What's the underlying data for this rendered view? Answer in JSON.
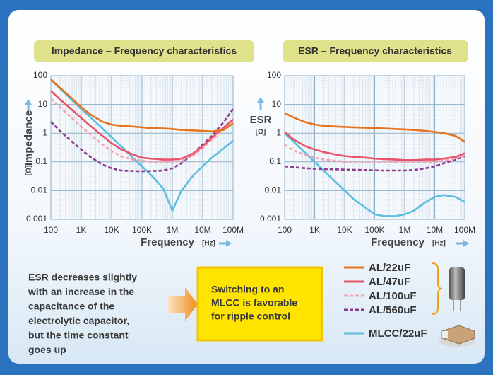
{
  "chart_data": [
    {
      "type": "line",
      "title": "Impedance – Frequency characteristics",
      "xlabel": "Frequency",
      "xunit": "[Hz]",
      "ylabel": "Impedance",
      "yunit": "[Ω]",
      "xlog": true,
      "ylog": true,
      "grid": true,
      "xlim": [
        100,
        100000000
      ],
      "ylim": [
        0.001,
        100
      ],
      "xticks": [
        100,
        {
          "value": 1000,
          "label": "1K"
        },
        {
          "value": 10000,
          "label": "10K"
        },
        {
          "value": 100000,
          "label": "100K"
        },
        {
          "value": 1000000,
          "label": "1M"
        },
        {
          "value": 10000000,
          "label": "10M"
        },
        {
          "value": 100000000,
          "label": "100M"
        }
      ],
      "yticks": [
        100,
        10,
        1,
        0.1,
        0.01,
        0.001
      ],
      "x": [
        100,
        200,
        500,
        1000,
        2000,
        5000,
        10000,
        20000,
        50000,
        100000,
        200000,
        500000,
        1000000,
        2000000,
        5000000,
        10000000,
        20000000,
        50000000,
        100000000
      ],
      "series": [
        {
          "name": "AL/22uF",
          "color": "#e8731e",
          "dash": false,
          "values": [
            75,
            38,
            16,
            8,
            4.5,
            2.5,
            2,
            1.8,
            1.7,
            1.6,
            1.5,
            1.45,
            1.4,
            1.3,
            1.25,
            1.2,
            1.15,
            1.3,
            2.2
          ]
        },
        {
          "name": "AL/47uF",
          "color": "#e8546a",
          "dash": false,
          "values": [
            30,
            15,
            6.5,
            3.4,
            1.8,
            0.8,
            0.45,
            0.28,
            0.18,
            0.14,
            0.13,
            0.12,
            0.12,
            0.13,
            0.2,
            0.35,
            0.7,
            1.6,
            3
          ]
        },
        {
          "name": "AL/100uF",
          "color": "#f4a3b0",
          "dash": true,
          "values": [
            16,
            8,
            3.3,
            1.7,
            0.9,
            0.4,
            0.24,
            0.16,
            0.12,
            0.11,
            0.1,
            0.1,
            0.1,
            0.11,
            0.17,
            0.3,
            0.6,
            1.4,
            2.6
          ]
        },
        {
          "name": "AL/560uF",
          "color": "#8b3a8f",
          "dash": true,
          "values": [
            2.5,
            1.2,
            0.5,
            0.27,
            0.15,
            0.08,
            0.06,
            0.05,
            0.048,
            0.047,
            0.048,
            0.05,
            0.06,
            0.09,
            0.2,
            0.4,
            0.8,
            2.5,
            7
          ]
        },
        {
          "name": "MLCC/22uF",
          "color": "#5bbfe0",
          "dash": false,
          "values": [
            72,
            36,
            14,
            7,
            3.6,
            1.45,
            0.72,
            0.36,
            0.14,
            0.07,
            0.035,
            0.012,
            0.002,
            0.01,
            0.035,
            0.07,
            0.14,
            0.3,
            0.55
          ]
        }
      ]
    },
    {
      "type": "line",
      "title": "ESR – Frequency characteristics",
      "xlabel": "Frequency",
      "xunit": "[Hz]",
      "ylabel": "ESR",
      "yunit": "[Ω]",
      "xlog": true,
      "ylog": true,
      "grid": true,
      "xlim": [
        100,
        100000000
      ],
      "ylim": [
        0.001,
        100
      ],
      "xticks": [
        100,
        {
          "value": 1000,
          "label": "1K"
        },
        {
          "value": 10000,
          "label": "10K"
        },
        {
          "value": 100000,
          "label": "100K"
        },
        {
          "value": 1000000,
          "label": "1M"
        },
        {
          "value": 10000000,
          "label": "10M"
        },
        {
          "value": 100000000,
          "label": "100M"
        }
      ],
      "yticks": [
        100,
        10,
        1,
        0.1,
        0.01,
        0.001
      ],
      "x": [
        100,
        200,
        500,
        1000,
        2000,
        5000,
        10000,
        20000,
        50000,
        100000,
        200000,
        500000,
        1000000,
        2000000,
        5000000,
        10000000,
        20000000,
        50000000,
        100000000
      ],
      "series": [
        {
          "color": "#e8731e",
          "dash": false,
          "values": [
            5,
            3.5,
            2.4,
            2,
            1.8,
            1.7,
            1.65,
            1.6,
            1.55,
            1.5,
            1.45,
            1.4,
            1.35,
            1.3,
            1.2,
            1.1,
            1,
            0.8,
            0.5
          ]
        },
        {
          "color": "#e8546a",
          "dash": false,
          "values": [
            1.1,
            0.6,
            0.35,
            0.27,
            0.22,
            0.18,
            0.16,
            0.15,
            0.14,
            0.13,
            0.125,
            0.12,
            0.115,
            0.115,
            0.12,
            0.12,
            0.13,
            0.15,
            0.2
          ]
        },
        {
          "color": "#f4a3b0",
          "dash": true,
          "values": [
            0.4,
            0.25,
            0.17,
            0.14,
            0.12,
            0.11,
            0.1,
            0.1,
            0.095,
            0.095,
            0.095,
            0.095,
            0.095,
            0.095,
            0.1,
            0.1,
            0.11,
            0.13,
            0.17
          ]
        },
        {
          "color": "#8b3a8f",
          "dash": true,
          "values": [
            0.07,
            0.065,
            0.06,
            0.058,
            0.056,
            0.055,
            0.054,
            0.053,
            0.052,
            0.051,
            0.05,
            0.05,
            0.05,
            0.052,
            0.06,
            0.07,
            0.09,
            0.12,
            0.16
          ]
        },
        {
          "color": "#5bbfe0",
          "dash": false,
          "values": [
            1,
            0.5,
            0.2,
            0.1,
            0.05,
            0.02,
            0.01,
            0.005,
            0.0025,
            0.0015,
            0.0013,
            0.0013,
            0.0015,
            0.002,
            0.004,
            0.006,
            0.007,
            0.006,
            0.004
          ]
        }
      ]
    }
  ],
  "notes": {
    "left": [
      "ESR decreases slightly",
      "with an increase in the",
      "capacitance of the",
      "electrolytic capacitor,",
      "but the time constant",
      "goes up"
    ],
    "callout": [
      "Switching to an",
      "MLCC is favorable",
      "for ripple control"
    ]
  }
}
